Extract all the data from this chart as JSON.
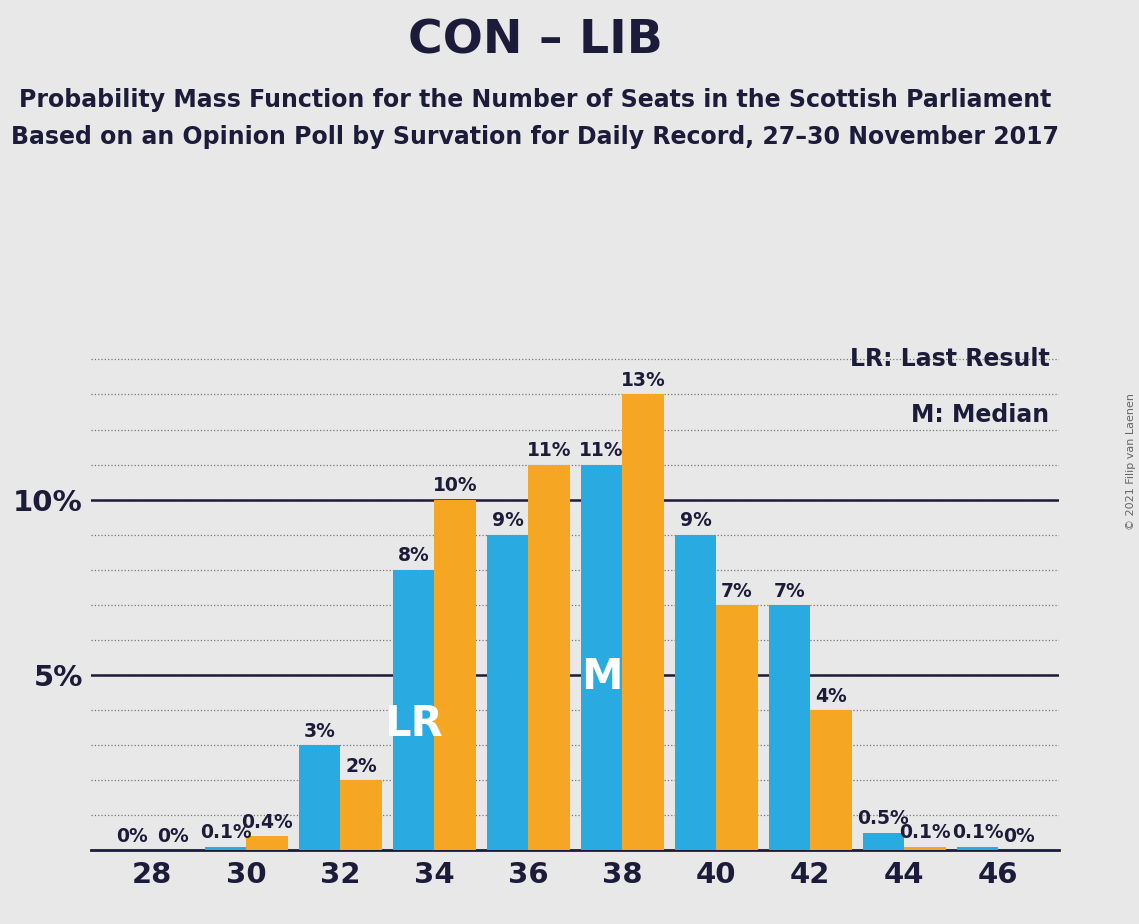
{
  "title": "CON – LIB",
  "subtitle1": "Probability Mass Function for the Number of Seats in the Scottish Parliament",
  "subtitle2": "Based on an Opinion Poll by Survation for Daily Record, 27–30 November 2017",
  "copyright": "© 2021 Filip van Laenen",
  "legend_lr": "LR: Last Result",
  "legend_m": "M: Median",
  "seats": [
    28,
    30,
    32,
    34,
    36,
    38,
    40,
    42,
    44,
    46
  ],
  "blue_values": [
    0.0,
    0.1,
    3.0,
    8.0,
    9.0,
    11.0,
    9.0,
    7.0,
    0.5,
    0.1
  ],
  "orange_values": [
    0.0,
    0.4,
    2.0,
    10.0,
    11.0,
    13.0,
    7.0,
    4.0,
    0.1,
    0.0
  ],
  "blue_labels": [
    "0%",
    "0.1%",
    "3%",
    "8%",
    "9%",
    "11%",
    "9%",
    "7%",
    "0.5%",
    "0.1%"
  ],
  "orange_labels": [
    "0%",
    "0.4%",
    "2%",
    "10%",
    "11%",
    "13%",
    "7%",
    "4%",
    "0.1%",
    "0%"
  ],
  "blue_color": "#29ABE2",
  "orange_color": "#F5A623",
  "background_color": "#E8E8E8",
  "text_color": "#1C1C3A",
  "lr_seat_index": 3,
  "median_seat_index": 5,
  "ylim_max": 14.5,
  "title_fontsize": 34,
  "subtitle_fontsize": 17,
  "label_fontsize": 13.5,
  "axis_tick_fontsize": 21,
  "lr_m_fontsize": 30,
  "legend_fontsize": 17,
  "copyright_fontsize": 8
}
